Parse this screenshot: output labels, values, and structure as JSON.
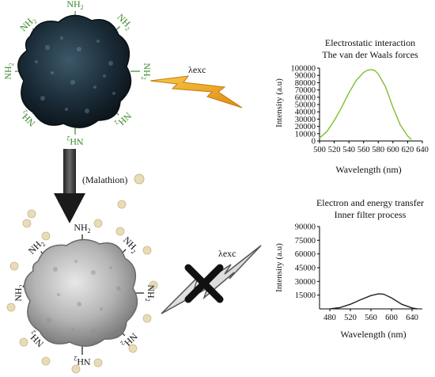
{
  "top_particle": {
    "amine_label": "NH",
    "amine_subscript": "2"
  },
  "excitation_label": "λexc",
  "reagent_label": "(Malathion)",
  "bottom_particle": {
    "amine_label": "NH",
    "amine_subscript": "2"
  },
  "blocked_excitation_label": "λexc",
  "colors": {
    "top_amine": "#3a8a2a",
    "bottom_amine": "#111111",
    "curve_top": "#7fbf2e",
    "curve_bottom": "#222222",
    "bolt": "#f2a91c",
    "particle_top": "#1c2e3a",
    "particle_bottom": "#b8b8b8",
    "dots": "#e8dcb8"
  },
  "chart_data": [
    {
      "type": "line",
      "title": "Electrostatic interaction",
      "subtitle": "The van der Waals forces",
      "xlabel": "Wavelength (nm)",
      "ylabel": "Intensity (a.u)",
      "xlim": [
        500,
        640
      ],
      "ylim": [
        0,
        100000
      ],
      "x_ticks": [
        "500",
        "520",
        "540",
        "560",
        "580",
        "600",
        "620",
        "640"
      ],
      "y_ticks": [
        "0",
        "10000",
        "20000",
        "30000",
        "40000",
        "50000",
        "60000",
        "70000",
        "80000",
        "90000",
        "100000"
      ],
      "x": [
        500,
        510,
        520,
        530,
        540,
        550,
        560,
        565,
        570,
        575,
        580,
        590,
        600,
        610,
        620,
        625
      ],
      "y": [
        4000,
        13000,
        28000,
        46000,
        66000,
        83000,
        94000,
        97000,
        98000,
        97000,
        92000,
        74000,
        46000,
        22000,
        7000,
        2000
      ]
    },
    {
      "type": "line",
      "title": "Electron and energy transfer",
      "subtitle": "Inner filter process",
      "xlabel": "Wavelength (nm)",
      "ylabel": "Intensity (a.u)",
      "xlim": [
        460,
        660
      ],
      "ylim": [
        0,
        90000
      ],
      "x_ticks": [
        "480",
        "520",
        "560",
        "600",
        "640"
      ],
      "y_ticks": [
        "15000",
        "30000",
        "45000",
        "60000",
        "75000",
        "90000"
      ],
      "x": [
        480,
        500,
        520,
        540,
        560,
        575,
        585,
        600,
        620,
        640,
        650
      ],
      "y": [
        0,
        1500,
        5000,
        10000,
        14500,
        16500,
        16000,
        12000,
        5000,
        1000,
        0
      ]
    }
  ]
}
